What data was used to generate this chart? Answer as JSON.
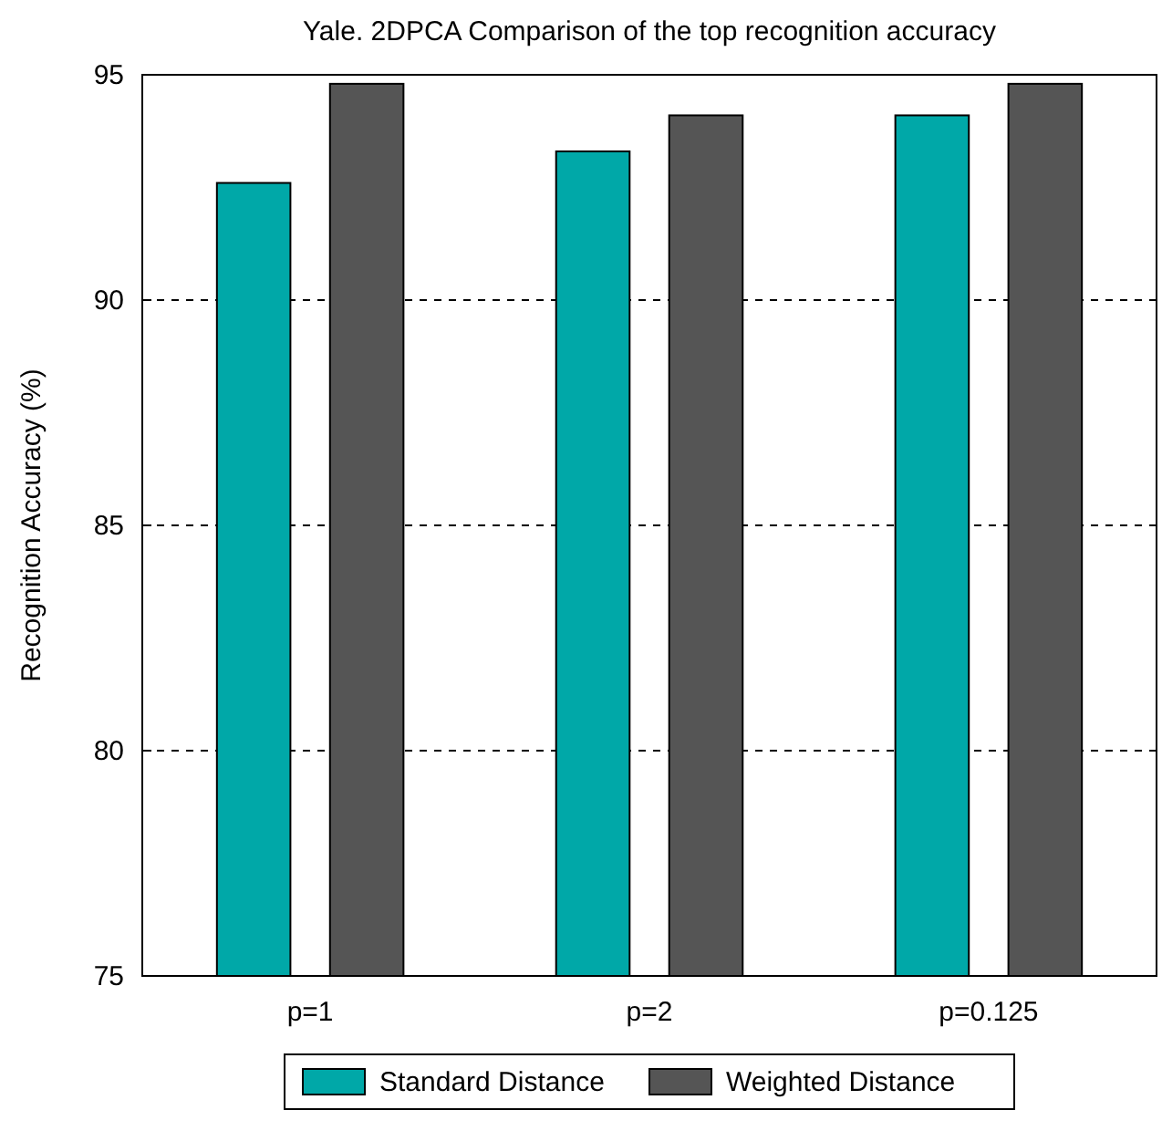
{
  "chart_data": {
    "type": "bar",
    "title": "Yale. 2DPCA Comparison of the top recognition accuracy",
    "ylabel": "Recognition Accuracy (%)",
    "categories": [
      "p=1",
      "p=2",
      "p=0.125"
    ],
    "series": [
      {
        "name": "Standard Distance",
        "color": "#00a8a8",
        "values": [
          92.6,
          93.3,
          94.1
        ]
      },
      {
        "name": "Weighted Distance",
        "color": "#555555",
        "values": [
          94.8,
          94.1,
          94.8
        ]
      }
    ],
    "ylim": [
      75,
      95
    ],
    "yticks": [
      75,
      80,
      85,
      90,
      95
    ],
    "grid": "y",
    "legend": "bottom"
  }
}
